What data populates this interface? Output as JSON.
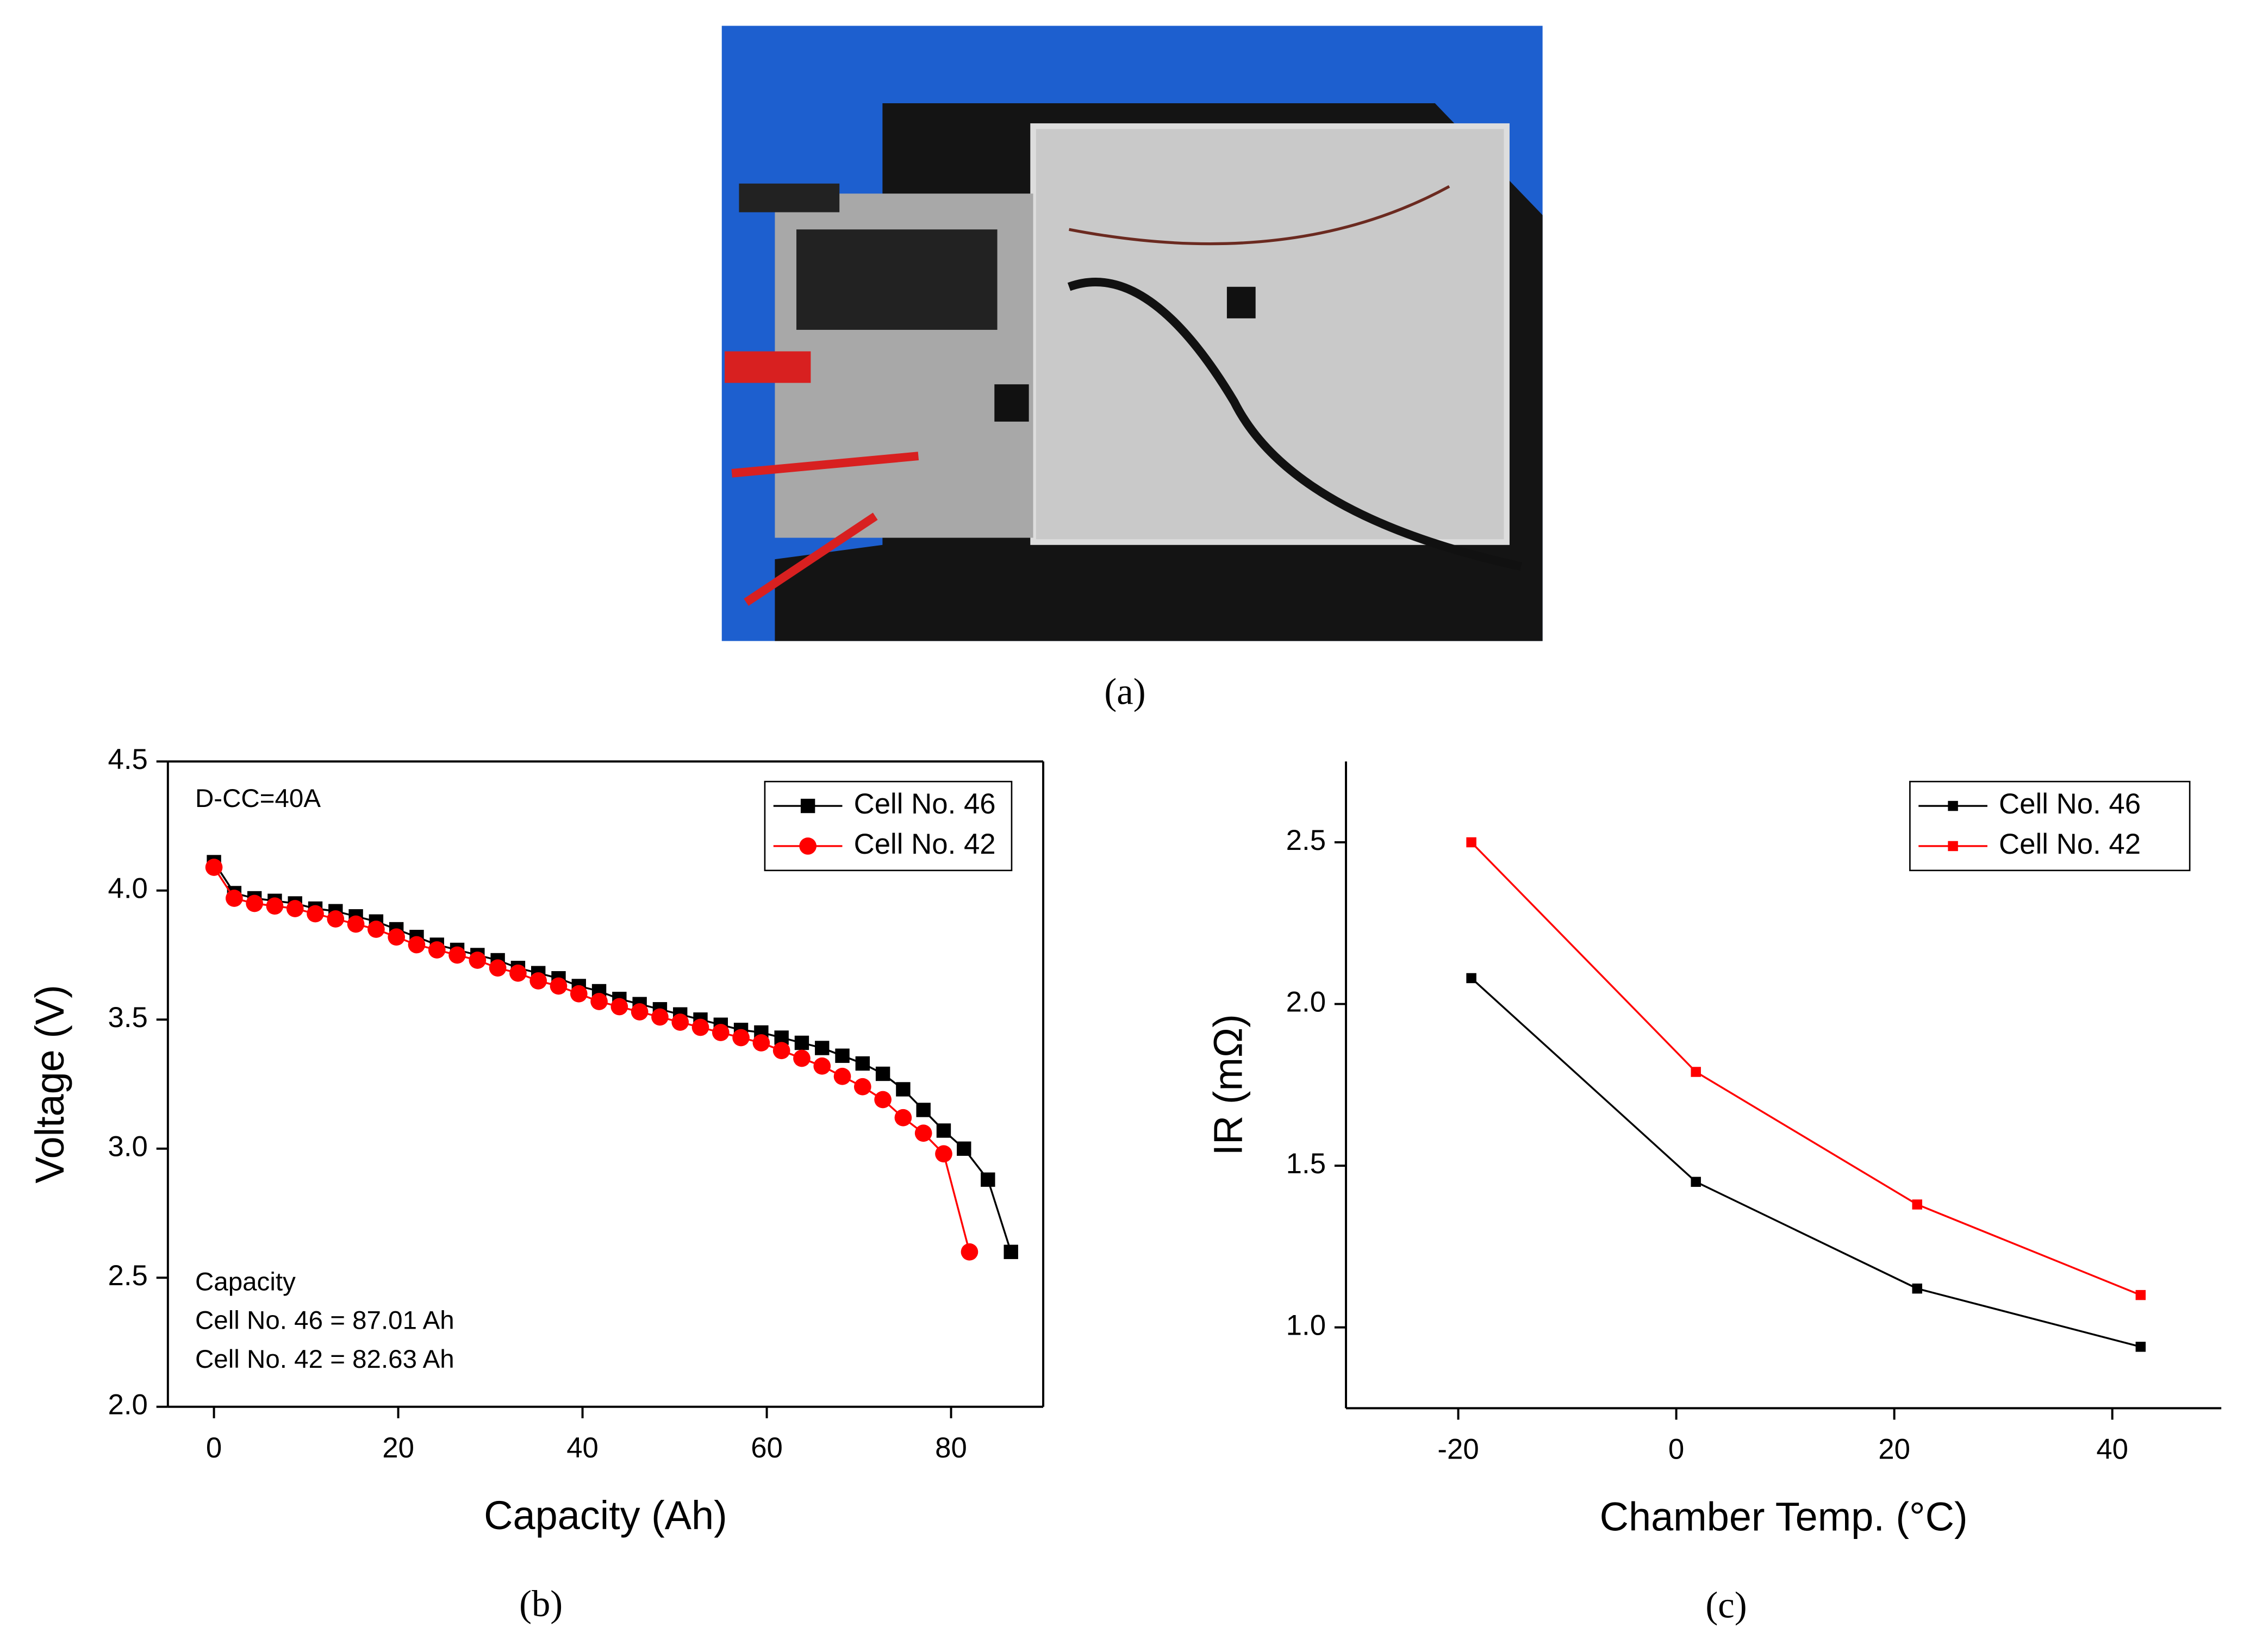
{
  "photo": {
    "caption": "(a)"
  },
  "chart_data": [
    {
      "type": "line",
      "caption": "(b)",
      "x_label": "Capacity (Ah)",
      "y_label": "Voltage (V)",
      "annotations": [
        "D-CC=40A",
        "Capacity",
        "Cell No. 46 = 87.01 Ah",
        "Cell No. 42 = 82.63 Ah"
      ],
      "xlim": [
        -5,
        90
      ],
      "xticks": [
        0,
        20,
        40,
        60,
        80
      ],
      "ylim": [
        2.0,
        4.5
      ],
      "yticks": [
        {
          "value": 2.0,
          "label": "2.0"
        },
        2.5,
        {
          "value": 3.0,
          "label": "3.0"
        },
        3.5,
        {
          "value": 4.0,
          "label": "4.0"
        },
        4.5
      ],
      "legend": "upper right",
      "frame": "box",
      "series": [
        {
          "name": "Cell No. 46",
          "color": "#000000",
          "marker": "square",
          "x": [
            0,
            2.2,
            4.4,
            6.6,
            8.8,
            11,
            13.2,
            15.4,
            17.6,
            19.8,
            22,
            24.2,
            26.4,
            28.6,
            30.8,
            33,
            35.2,
            37.4,
            39.6,
            41.8,
            44,
            46.2,
            48.4,
            50.6,
            52.8,
            55,
            57.2,
            59.4,
            61.6,
            63.8,
            66,
            68.2,
            70.4,
            72.6,
            74.8,
            77,
            79.2,
            81.4,
            84,
            86.5
          ],
          "values": [
            4.11,
            3.99,
            3.97,
            3.96,
            3.95,
            3.93,
            3.92,
            3.9,
            3.88,
            3.85,
            3.82,
            3.79,
            3.77,
            3.75,
            3.73,
            3.7,
            3.68,
            3.66,
            3.63,
            3.61,
            3.58,
            3.56,
            3.54,
            3.52,
            3.5,
            3.48,
            3.46,
            3.45,
            3.43,
            3.41,
            3.39,
            3.36,
            3.33,
            3.29,
            3.23,
            3.15,
            3.07,
            3.0,
            2.88,
            2.6
          ]
        },
        {
          "name": "Cell No. 42",
          "color": "#ff0000",
          "marker": "circle",
          "x": [
            0,
            2.2,
            4.4,
            6.6,
            8.8,
            11,
            13.2,
            15.4,
            17.6,
            19.8,
            22,
            24.2,
            26.4,
            28.6,
            30.8,
            33,
            35.2,
            37.4,
            39.6,
            41.8,
            44,
            46.2,
            48.4,
            50.6,
            52.8,
            55,
            57.2,
            59.4,
            61.6,
            63.8,
            66,
            68.2,
            70.4,
            72.6,
            74.8,
            77,
            79.2,
            82
          ],
          "values": [
            4.09,
            3.97,
            3.95,
            3.94,
            3.93,
            3.91,
            3.89,
            3.87,
            3.85,
            3.82,
            3.79,
            3.77,
            3.75,
            3.73,
            3.7,
            3.68,
            3.65,
            3.63,
            3.6,
            3.57,
            3.55,
            3.53,
            3.51,
            3.49,
            3.47,
            3.45,
            3.43,
            3.41,
            3.38,
            3.35,
            3.32,
            3.28,
            3.24,
            3.19,
            3.12,
            3.06,
            2.98,
            2.6
          ]
        }
      ]
    },
    {
      "type": "line",
      "caption": "(c)",
      "x_label": "Chamber Temp. (°C)",
      "y_label": "IR (mΩ)",
      "xlim": [
        -30.3,
        50
      ],
      "xticks": [
        -20,
        0,
        20,
        40
      ],
      "ylim": [
        0.75,
        2.75
      ],
      "yticks": [
        {
          "value": 1.0,
          "label": "1.0"
        },
        1.5,
        {
          "value": 2.0,
          "label": "2.0"
        },
        2.5
      ],
      "legend": "upper right",
      "frame": "axes",
      "series": [
        {
          "name": "Cell No. 46",
          "color": "#000000",
          "marker": "square",
          "x": [
            -18.8,
            1.8,
            22.1,
            42.6
          ],
          "values": [
            2.08,
            1.45,
            1.12,
            0.94
          ]
        },
        {
          "name": "Cell No. 42",
          "color": "#ff0000",
          "marker": "square",
          "x": [
            -18.8,
            1.8,
            22.1,
            42.6
          ],
          "values": [
            2.5,
            1.79,
            1.38,
            1.1
          ]
        }
      ]
    }
  ]
}
